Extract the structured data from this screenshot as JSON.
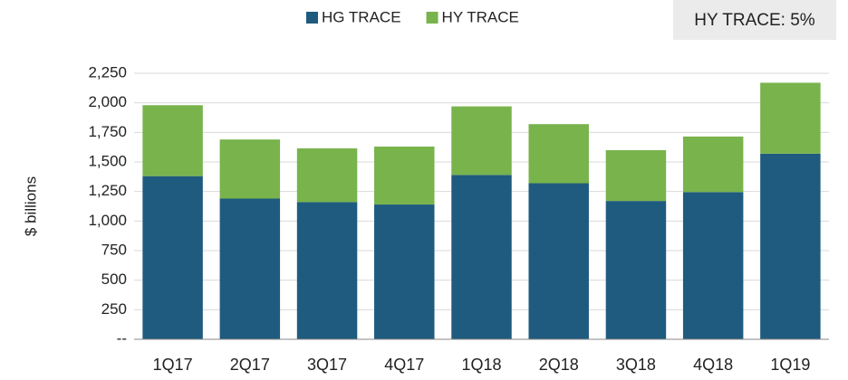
{
  "chart_data": {
    "type": "stacked_bar",
    "annotation": "HY TRACE: 5%",
    "y_label": "$ billions",
    "categories": [
      "1Q17",
      "2Q17",
      "3Q17",
      "4Q17",
      "1Q18",
      "2Q18",
      "3Q18",
      "4Q18",
      "1Q19"
    ],
    "series": [
      {
        "name": "HG TRACE",
        "color": "#1f5b7e",
        "values": [
          1380,
          1190,
          1160,
          1140,
          1390,
          1320,
          1170,
          1245,
          1570
        ]
      },
      {
        "name": "HY TRACE",
        "color": "#78b34c",
        "values": [
          600,
          500,
          455,
          490,
          580,
          500,
          430,
          470,
          600
        ]
      }
    ],
    "ylim": [
      0,
      2250
    ],
    "yticks": [
      {
        "value": 0,
        "label": "--"
      },
      250,
      500,
      750,
      {
        "value": 1000,
        "label": "1,000"
      },
      {
        "value": 1250,
        "label": "1,250"
      },
      {
        "value": 1500,
        "label": "1,500"
      },
      {
        "value": 1750,
        "label": "1,750"
      },
      {
        "value": 2000,
        "label": "2,000"
      },
      {
        "value": 2250,
        "label": "2,250"
      }
    ],
    "grid": true,
    "legend": "top"
  }
}
